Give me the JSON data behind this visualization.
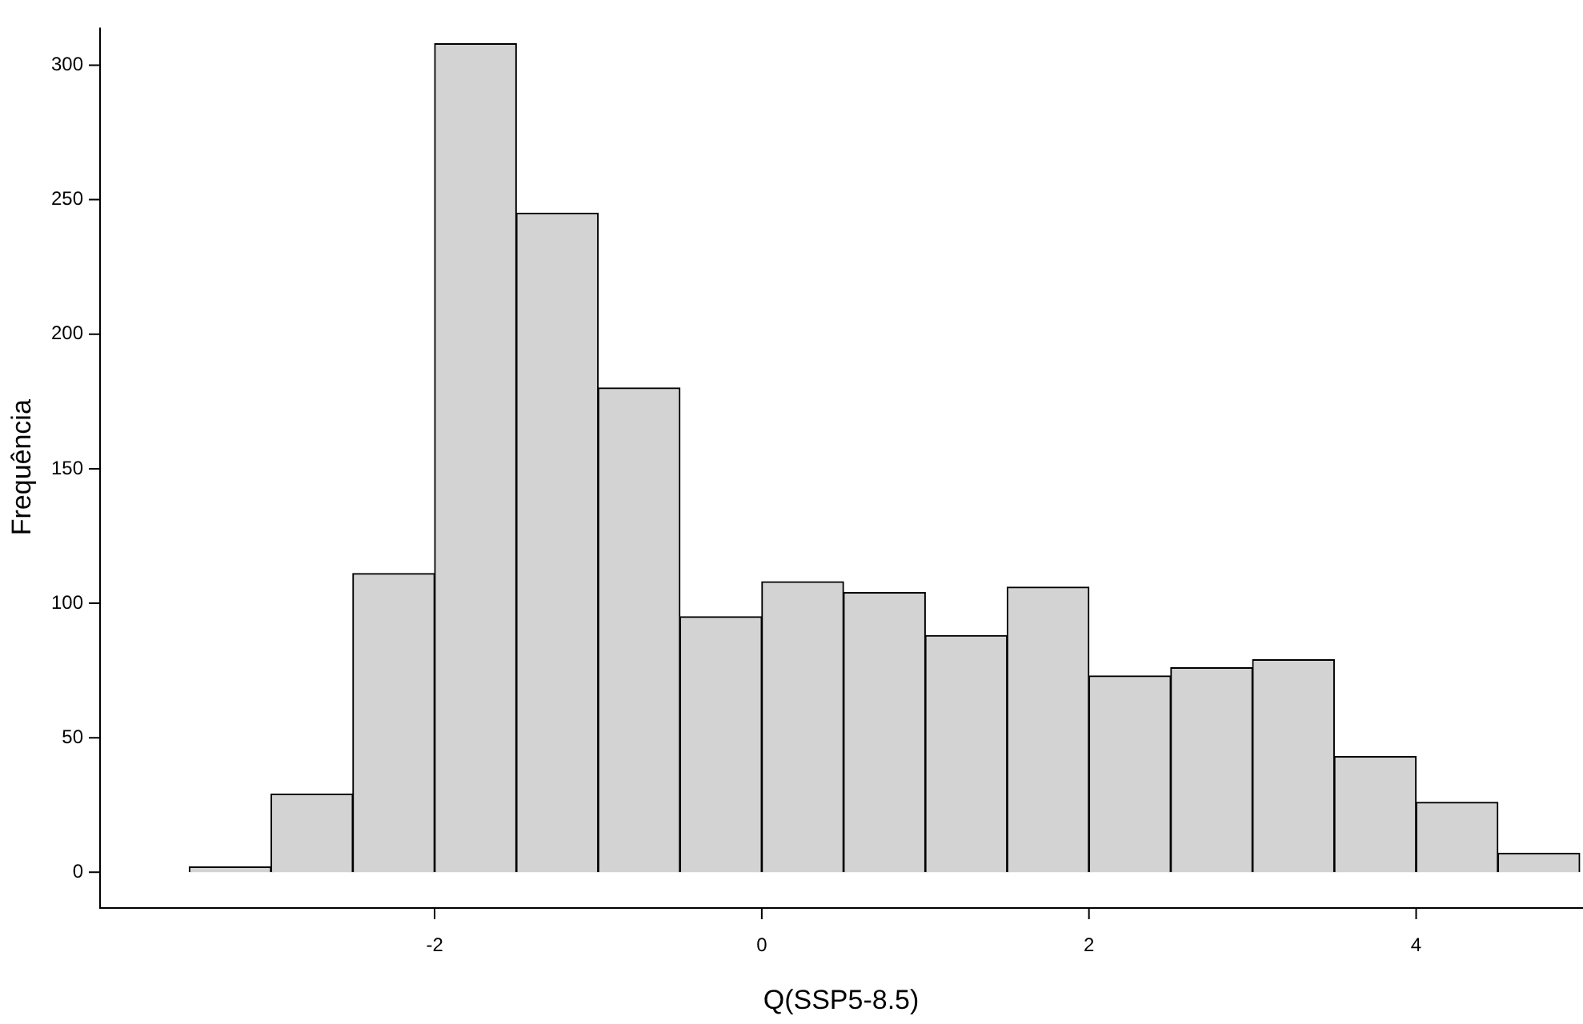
{
  "chart_data": {
    "type": "histogram",
    "xlabel": "Q(SSP5-8.5)",
    "ylabel": "Frequência",
    "bins": [
      -3.5,
      -3,
      -2.5,
      -2,
      -1.5,
      -1,
      -0.5,
      0,
      0.5,
      1,
      1.5,
      2,
      2.5,
      3,
      3.5,
      4,
      4.5,
      5
    ],
    "values": [
      2,
      29,
      111,
      308,
      245,
      180,
      95,
      108,
      104,
      88,
      106,
      73,
      76,
      79,
      43,
      26,
      7
    ],
    "color": "#d3d3d3",
    "xlim": [
      -4.05,
      5.02
    ],
    "xticks": [
      -2,
      0,
      2,
      4
    ],
    "ylim": [
      -13,
      314
    ],
    "yticks": [
      0,
      50,
      100,
      150,
      200,
      250,
      300
    ],
    "grid": false,
    "legend": false
  }
}
